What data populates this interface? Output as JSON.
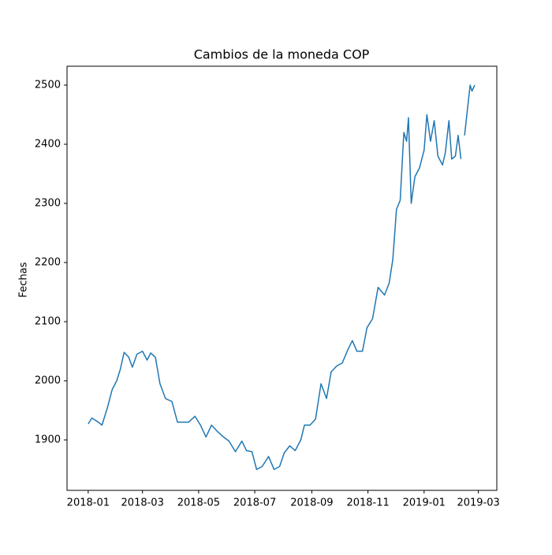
{
  "chart_data": {
    "type": "line",
    "title": "Cambios de la moneda COP",
    "y_label": "Fechas",
    "x": [
      "2018-01-01",
      "2018-01-05",
      "2018-01-12",
      "2018-01-16",
      "2018-01-22",
      "2018-01-27",
      "2018-02-01",
      "2018-02-05",
      "2018-02-09",
      "2018-02-14",
      "2018-02-18",
      "2018-02-23",
      "2018-03-01",
      "2018-03-06",
      "2018-03-10",
      "2018-03-15",
      "2018-03-20",
      "2018-03-26",
      "2018-04-02",
      "2018-04-08",
      "2018-04-14",
      "2018-04-20",
      "2018-04-27",
      "2018-05-03",
      "2018-05-09",
      "2018-05-15",
      "2018-05-21",
      "2018-05-28",
      "2018-06-03",
      "2018-06-10",
      "2018-06-17",
      "2018-06-22",
      "2018-06-28",
      "2018-07-03",
      "2018-07-09",
      "2018-07-16",
      "2018-07-22",
      "2018-07-28",
      "2018-08-02",
      "2018-08-08",
      "2018-08-14",
      "2018-08-20",
      "2018-08-24",
      "2018-08-30",
      "2018-09-05",
      "2018-09-11",
      "2018-09-17",
      "2018-09-22",
      "2018-09-28",
      "2018-10-04",
      "2018-10-10",
      "2018-10-15",
      "2018-10-20",
      "2018-10-26",
      "2018-10-31",
      "2018-11-06",
      "2018-11-12",
      "2018-11-19",
      "2018-11-24",
      "2018-11-28",
      "2018-12-02",
      "2018-12-06",
      "2018-12-10",
      "2018-12-13",
      "2018-12-15",
      "2018-12-18",
      "2018-12-22",
      "2018-12-27",
      "2019-01-01",
      "2019-01-04",
      "2019-01-08",
      "2019-01-12",
      "2019-01-16",
      "2019-01-21",
      "2019-01-24",
      "2019-01-28",
      "2019-01-31",
      "2019-02-04",
      "2019-02-07",
      "2019-02-10",
      "2019-02-12",
      "2019-02-14",
      "2019-02-20",
      "2019-02-22",
      "2019-02-25"
    ],
    "series": [
      {
        "color": "#1f77b4",
        "values": [
          1927,
          1937,
          1930,
          1925,
          1955,
          1985,
          2000,
          2020,
          2048,
          2040,
          2023,
          2045,
          2050,
          2035,
          2047,
          2040,
          1995,
          1970,
          1965,
          1930,
          1930,
          1930,
          1940,
          1925,
          1905,
          1925,
          1915,
          1905,
          1898,
          1880,
          1898,
          1882,
          1880,
          1850,
          1855,
          1872,
          1850,
          1855,
          1878,
          1890,
          1882,
          1900,
          1925,
          1925,
          1935,
          1995,
          1970,
          2015,
          2025,
          2030,
          2052,
          2068,
          2050,
          2050,
          2090,
          2105,
          2158,
          2145,
          2165,
          2205,
          2290,
          2305,
          2420,
          2405,
          2445,
          2300,
          2345,
          2360,
          2390,
          2450,
          2405,
          2440,
          2380,
          2365,
          2385,
          2440,
          2375,
          2380,
          2415,
          2375,
          null,
          2415,
          2500,
          2490,
          2500
        ]
      }
    ],
    "xlim": [
      "2017-12-09",
      "2019-03-21"
    ],
    "xticks": [
      {
        "value": "2018-01-01",
        "label": "2018-01"
      },
      {
        "value": "2018-03-01",
        "label": "2018-03"
      },
      {
        "value": "2018-05-01",
        "label": "2018-05"
      },
      {
        "value": "2018-07-01",
        "label": "2018-07"
      },
      {
        "value": "2018-09-01",
        "label": "2018-09"
      },
      {
        "value": "2018-11-01",
        "label": "2018-11"
      },
      {
        "value": "2019-01-01",
        "label": "2019-01"
      },
      {
        "value": "2019-03-01",
        "label": "2019-03"
      }
    ],
    "ylim": [
      1814.7,
      2532
    ],
    "yticks": [
      1900,
      2000,
      2100,
      2200,
      2300,
      2400,
      2500
    ],
    "grid": false
  }
}
